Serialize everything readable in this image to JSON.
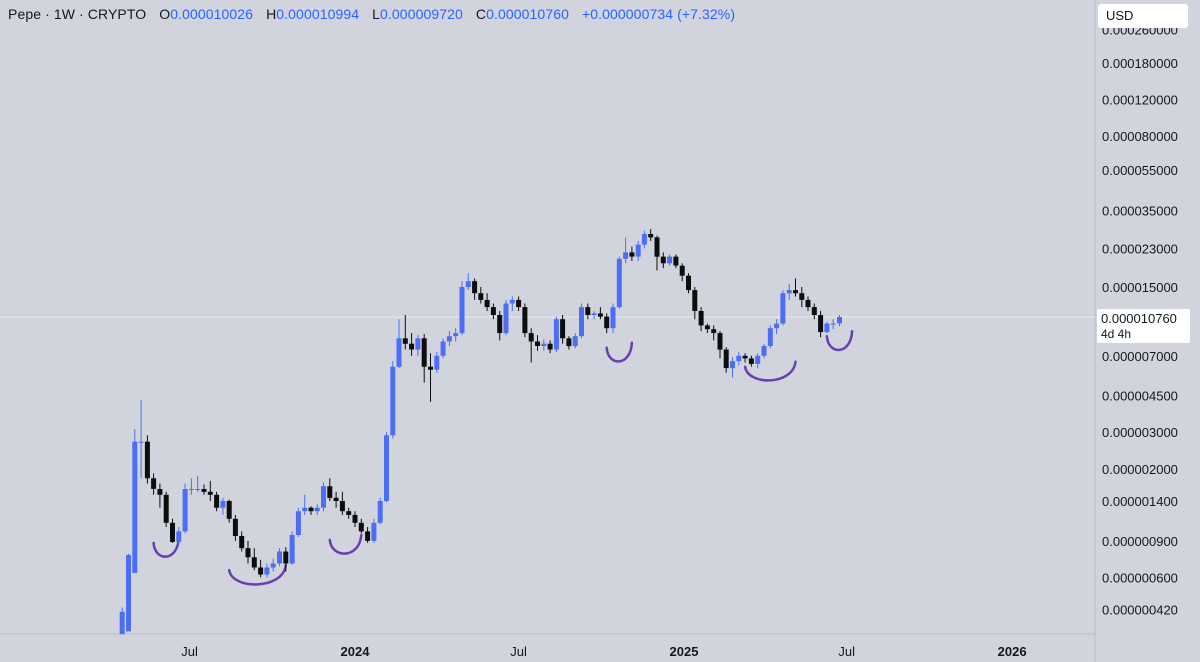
{
  "header": {
    "symbol": "Pepe · 1W · CRYPTO",
    "o_label": "O",
    "o_value": "0.000010026",
    "h_label": "H",
    "h_value": "0.000010994",
    "l_label": "L",
    "l_value": "0.000009720",
    "c_label": "C",
    "c_value": "0.000010760",
    "change": "+0.000000734 (+7.32%)"
  },
  "currency_button": "USD",
  "last_price_tag": {
    "price": "0.000010760",
    "countdown": "4d 4h"
  },
  "colors": {
    "background": "#d1d4dc",
    "up": "#4c6ef5",
    "down": "#0d0d0d",
    "annotation": "#6a3fb0",
    "value": "#2962ff"
  },
  "chart_data": {
    "type": "candlestick",
    "scale": "log",
    "y_tick_labels": [
      "0.000260000",
      "0.000180000",
      "0.000120000",
      "0.000080000",
      "0.000055000",
      "0.000035000",
      "0.000023000",
      "0.000015000",
      "0.000007000",
      "0.000004500",
      "0.000003000",
      "0.000002000",
      "0.000001400",
      "0.000000900",
      "0.000000600",
      "0.000000420"
    ],
    "y_tick_values": [
      0.00026,
      0.00018,
      0.00012,
      8e-05,
      5.5e-05,
      3.5e-05,
      2.3e-05,
      1.5e-05,
      7e-06,
      4.5e-06,
      3e-06,
      2e-06,
      1.4e-06,
      9e-07,
      6e-07,
      4.2e-07
    ],
    "x_tick_labels": [
      "Jul",
      "2024",
      "Jul",
      "2025",
      "Jul",
      "2026"
    ],
    "x_tick_dates": [
      "2023-07-01",
      "2024-01-01",
      "2024-07-01",
      "2025-01-01",
      "2025-07-01",
      "2026-01-01"
    ],
    "x_range": [
      "2023-04-10",
      "2026-03-30"
    ],
    "last_price": 1.076e-05,
    "candle_dates": [
      "2023-04-17",
      "2023-04-24",
      "2023-05-01",
      "2023-05-08",
      "2023-05-15",
      "2023-05-22",
      "2023-05-29",
      "2023-06-05",
      "2023-06-12",
      "2023-06-19",
      "2023-06-26",
      "2023-07-03",
      "2023-07-10",
      "2023-07-17",
      "2023-07-24",
      "2023-07-31",
      "2023-08-07",
      "2023-08-14",
      "2023-08-21",
      "2023-08-28",
      "2023-09-04",
      "2023-09-11",
      "2023-09-18",
      "2023-09-25",
      "2023-10-02",
      "2023-10-09",
      "2023-10-16",
      "2023-10-23",
      "2023-10-30",
      "2023-11-06",
      "2023-11-13",
      "2023-11-20",
      "2023-11-27",
      "2023-12-04",
      "2023-12-11",
      "2023-12-18",
      "2023-12-25",
      "2024-01-01",
      "2024-01-08",
      "2024-01-15",
      "2024-01-22",
      "2024-01-29",
      "2024-02-05",
      "2024-02-12",
      "2024-02-19",
      "2024-02-26",
      "2024-03-04",
      "2024-03-11",
      "2024-03-18",
      "2024-03-25",
      "2024-04-01",
      "2024-04-08",
      "2024-04-15",
      "2024-04-22",
      "2024-04-29",
      "2024-05-06",
      "2024-05-13",
      "2024-05-20",
      "2024-05-27",
      "2024-06-03",
      "2024-06-10",
      "2024-06-17",
      "2024-06-24",
      "2024-07-01",
      "2024-07-08",
      "2024-07-15",
      "2024-07-22",
      "2024-07-29",
      "2024-08-05",
      "2024-08-12",
      "2024-08-19",
      "2024-08-26",
      "2024-09-02",
      "2024-09-09",
      "2024-09-16",
      "2024-09-23",
      "2024-09-30",
      "2024-10-07",
      "2024-10-14",
      "2024-10-21",
      "2024-10-28",
      "2024-11-04",
      "2024-11-11",
      "2024-11-18",
      "2024-11-25",
      "2024-12-02",
      "2024-12-09",
      "2024-12-16",
      "2024-12-23",
      "2024-12-30",
      "2025-01-06",
      "2025-01-13",
      "2025-01-20",
      "2025-01-27",
      "2025-02-03",
      "2025-02-10",
      "2025-02-17",
      "2025-02-24",
      "2025-03-03",
      "2025-03-10",
      "2025-03-17",
      "2025-03-24",
      "2025-03-31",
      "2025-04-07",
      "2025-04-14",
      "2025-04-21",
      "2025-04-28",
      "2025-05-05",
      "2025-05-12",
      "2025-05-19",
      "2025-05-26",
      "2025-06-02",
      "2025-06-09",
      "2025-06-16",
      "2025-06-23",
      "2025-06-30"
    ],
    "candles": [
      [
        3.2e-07,
        4.3e-07,
        3.9e-07,
        4.1e-07
      ],
      [
        3.3e-07,
        7.8e-07,
        4.2e-07,
        7.7e-07
      ],
      [
        6.3e-07,
        3.1e-06,
        6.7e-07,
        2.7e-06
      ],
      [
        2.7e-06,
        4.3e-06,
        1.8e-06,
        2.7e-06
      ],
      [
        2.7e-06,
        2.9e-06,
        1.7e-06,
        1.8e-06
      ],
      [
        1.8e-06,
        1.9e-06,
        1.5e-06,
        1.6e-06
      ],
      [
        1.6e-06,
        1.7e-06,
        1.3e-06,
        1.5e-06
      ],
      [
        1.5e-06,
        1.55e-06,
        1.05e-06,
        1.1e-06
      ],
      [
        1.1e-06,
        1.15e-06,
        8.8e-07,
        8.9e-07
      ],
      [
        8.9e-07,
        1.05e-06,
        8.6e-07,
        1e-06
      ],
      [
        1e-06,
        1.7e-06,
        9.8e-07,
        1.6e-06
      ],
      [
        1.6e-06,
        1.8e-06,
        1.5e-06,
        1.6e-06
      ],
      [
        1.6e-06,
        1.85e-06,
        1.55e-06,
        1.6e-06
      ],
      [
        1.6e-06,
        1.68e-06,
        1.5e-06,
        1.55e-06
      ],
      [
        1.55e-06,
        1.75e-06,
        1.4e-06,
        1.5e-06
      ],
      [
        1.5e-06,
        1.55e-06,
        1.25e-06,
        1.3e-06
      ],
      [
        1.3e-06,
        1.45e-06,
        1.2e-06,
        1.4e-06
      ],
      [
        1.4e-06,
        1.42e-06,
        1.1e-06,
        1.15e-06
      ],
      [
        1.15e-06,
        1.2e-06,
        9e-07,
        9.5e-07
      ],
      [
        9.5e-07,
        1e-06,
        8e-07,
        8.3e-07
      ],
      [
        8.3e-07,
        9e-07,
        7e-07,
        7.5e-07
      ],
      [
        7.5e-07,
        8.3e-07,
        6.5e-07,
        6.7e-07
      ],
      [
        6.7e-07,
        7.3e-07,
        6e-07,
        6.2e-07
      ],
      [
        6.2e-07,
        7e-07,
        6e-07,
        6.7e-07
      ],
      [
        6.7e-07,
        7.4e-07,
        6.4e-07,
        7e-07
      ],
      [
        7e-07,
        8.3e-07,
        6.8e-07,
        8e-07
      ],
      [
        8e-07,
        8.4e-07,
        6.4e-07,
        7e-07
      ],
      [
        7e-07,
        1e-06,
        6.9e-07,
        9.6e-07
      ],
      [
        9.6e-07,
        1.3e-06,
        9.4e-07,
        1.25e-06
      ],
      [
        1.25e-06,
        1.5e-06,
        1.2e-06,
        1.3e-06
      ],
      [
        1.3e-06,
        1.32e-06,
        1.2e-06,
        1.25e-06
      ],
      [
        1.25e-06,
        1.35e-06,
        1.2e-06,
        1.3e-06
      ],
      [
        1.3e-06,
        1.72e-06,
        1.25e-06,
        1.65e-06
      ],
      [
        1.65e-06,
        1.8e-06,
        1.4e-06,
        1.45e-06
      ],
      [
        1.45e-06,
        1.55e-06,
        1.3e-06,
        1.4e-06
      ],
      [
        1.4e-06,
        1.55e-06,
        1.2e-06,
        1.25e-06
      ],
      [
        1.25e-06,
        1.3e-06,
        1.15e-06,
        1.2e-06
      ],
      [
        1.2e-06,
        1.25e-06,
        1.05e-06,
        1.1e-06
      ],
      [
        1.1e-06,
        1.15e-06,
        9.8e-07,
        1e-06
      ],
      [
        1e-06,
        1.05e-06,
        8.8e-07,
        9e-07
      ],
      [
        9e-07,
        1.15e-06,
        8.8e-07,
        1.1e-06
      ],
      [
        1.1e-06,
        1.45e-06,
        1.08e-06,
        1.4e-06
      ],
      [
        1.4e-06,
        3e-06,
        1.38e-06,
        2.9e-06
      ],
      [
        2.9e-06,
        6.6e-06,
        2.8e-06,
        6.2e-06
      ],
      [
        6.2e-06,
        1.05e-05,
        6.1e-06,
        8.5e-06
      ],
      [
        8.5e-06,
        1.1e-05,
        7.5e-06,
        8e-06
      ],
      [
        8e-06,
        9e-06,
        7e-06,
        7.5e-06
      ],
      [
        7.5e-06,
        8.8e-06,
        7e-06,
        8.5e-06
      ],
      [
        8.5e-06,
        8.9e-06,
        5.2e-06,
        6.2e-06
      ],
      [
        6.2e-06,
        7.2e-06,
        4.2e-06,
        6e-06
      ],
      [
        6e-06,
        7.3e-06,
        5.8e-06,
        7e-06
      ],
      [
        7e-06,
        8.5e-06,
        6.8e-06,
        8.2e-06
      ],
      [
        8.2e-06,
        9.2e-06,
        7.8e-06,
        8.7e-06
      ],
      [
        8.7e-06,
        9.5e-06,
        8.2e-06,
        9e-06
      ],
      [
        9e-06,
        1.6e-05,
        8.8e-06,
        1.5e-05
      ],
      [
        1.5e-05,
        1.75e-05,
        1.45e-05,
        1.6e-05
      ],
      [
        1.6e-05,
        1.65e-05,
        1.3e-05,
        1.4e-05
      ],
      [
        1.4e-05,
        1.5e-05,
        1.25e-05,
        1.3e-05
      ],
      [
        1.3e-05,
        1.4e-05,
        1.15e-05,
        1.2e-05
      ],
      [
        1.2e-05,
        1.25e-05,
        1.05e-05,
        1.1e-05
      ],
      [
        1.1e-05,
        1.15e-05,
        8.3e-06,
        9e-06
      ],
      [
        9e-06,
        1.3e-05,
        8.8e-06,
        1.25e-05
      ],
      [
        1.25e-05,
        1.35e-05,
        1.15e-05,
        1.3e-05
      ],
      [
        1.3e-05,
        1.35e-05,
        1.15e-05,
        1.2e-05
      ],
      [
        1.2e-05,
        1.25e-05,
        8.6e-06,
        9e-06
      ],
      [
        9e-06,
        9.5e-06,
        6.5e-06,
        8.2e-06
      ],
      [
        8.2e-06,
        8.8e-06,
        7.4e-06,
        7.8e-06
      ],
      [
        7.8e-06,
        8.4e-06,
        7.4e-06,
        8e-06
      ],
      [
        8e-06,
        8.3e-06,
        7.2e-06,
        7.5e-06
      ],
      [
        7.5e-06,
        1.08e-05,
        7.3e-06,
        1.05e-05
      ],
      [
        1.05e-05,
        1.1e-05,
        8e-06,
        8.5e-06
      ],
      [
        8.5e-06,
        8.7e-06,
        7.5e-06,
        7.8e-06
      ],
      [
        7.8e-06,
        9e-06,
        7.6e-06,
        8.7e-06
      ],
      [
        8.7e-06,
        1.25e-05,
        8.5e-06,
        1.2e-05
      ],
      [
        1.2e-05,
        1.25e-05,
        1.05e-05,
        1.1e-05
      ],
      [
        1.1e-05,
        1.15e-05,
        1.05e-05,
        1.12e-05
      ],
      [
        1.12e-05,
        1.2e-05,
        1.05e-05,
        1.08e-05
      ],
      [
        1.08e-05,
        1.12e-05,
        9e-06,
        9.5e-06
      ],
      [
        9.5e-06,
        1.25e-05,
        9e-06,
        1.2e-05
      ],
      [
        1.2e-05,
        2.1e-05,
        1.18e-05,
        2.05e-05
      ],
      [
        2.05e-05,
        2.6e-05,
        1.95e-05,
        2.2e-05
      ],
      [
        2.2e-05,
        2.35e-05,
        2e-05,
        2.1e-05
      ],
      [
        2.1e-05,
        2.5e-05,
        2e-05,
        2.4e-05
      ],
      [
        2.4e-05,
        2.8e-05,
        2.3e-05,
        2.7e-05
      ],
      [
        2.7e-05,
        2.85e-05,
        2.5e-05,
        2.6e-05
      ],
      [
        2.6e-05,
        2.65e-05,
        1.8e-05,
        2.1e-05
      ],
      [
        2.1e-05,
        2.2e-05,
        1.85e-05,
        1.95e-05
      ],
      [
        1.95e-05,
        2.15e-05,
        1.9e-05,
        2.1e-05
      ],
      [
        2.1e-05,
        2.15e-05,
        1.85e-05,
        1.9e-05
      ],
      [
        1.9e-05,
        1.95e-05,
        1.6e-05,
        1.7e-05
      ],
      [
        1.7e-05,
        1.75e-05,
        1.4e-05,
        1.45e-05
      ],
      [
        1.45e-05,
        1.5e-05,
        1.05e-05,
        1.15e-05
      ],
      [
        1.15e-05,
        1.2e-05,
        9.2e-06,
        9.8e-06
      ],
      [
        9.8e-06,
        1e-05,
        9e-06,
        9.4e-06
      ],
      [
        9.4e-06,
        9.8e-06,
        8.3e-06,
        9e-06
      ],
      [
        9e-06,
        9.2e-06,
        6.8e-06,
        7.5e-06
      ],
      [
        7.5e-06,
        7.7e-06,
        5.8e-06,
        6.1e-06
      ],
      [
        6.1e-06,
        6.9e-06,
        5.5e-06,
        6.6e-06
      ],
      [
        6.6e-06,
        7.3e-06,
        6.3e-06,
        7e-06
      ],
      [
        7e-06,
        7.2e-06,
        6.5e-06,
        6.8e-06
      ],
      [
        6.8e-06,
        7e-06,
        6.2e-06,
        6.4e-06
      ],
      [
        6.4e-06,
        7.2e-06,
        6.1e-06,
        7e-06
      ],
      [
        7e-06,
        8e-06,
        6.8e-06,
        7.8e-06
      ],
      [
        7.8e-06,
        9.8e-06,
        7.6e-06,
        9.5e-06
      ],
      [
        9.5e-06,
        1.05e-05,
        8.9e-06,
        1e-05
      ],
      [
        1e-05,
        1.45e-05,
        9.8e-06,
        1.4e-05
      ],
      [
        1.4e-05,
        1.55e-05,
        1.3e-05,
        1.45e-05
      ],
      [
        1.45e-05,
        1.65e-05,
        1.35e-05,
        1.4e-05
      ],
      [
        1.4e-05,
        1.5e-05,
        1.2e-05,
        1.3e-05
      ],
      [
        1.3e-05,
        1.35e-05,
        1.15e-05,
        1.2e-05
      ],
      [
        1.2e-05,
        1.25e-05,
        1.05e-05,
        1.1e-05
      ],
      [
        1.1e-05,
        1.15e-05,
        8.6e-06,
        9.1e-06
      ],
      [
        9.1e-06,
        1.02e-05,
        9e-06,
        1e-05
      ],
      [
        1e-05,
        1.05e-05,
        9.4e-06,
        1e-05
      ],
      [
        1.0026e-05,
        1.0994e-05,
        9.72e-06,
        1.076e-05
      ]
    ],
    "annotations": [
      {
        "type": "arc",
        "from": "2023-05-22",
        "to": "2023-06-19",
        "level": 8.5e-07
      },
      {
        "type": "arc",
        "from": "2023-08-14",
        "to": "2023-10-16",
        "level": 6.3e-07
      },
      {
        "type": "arc",
        "from": "2023-12-04",
        "to": "2024-01-08",
        "level": 8.8e-07
      },
      {
        "type": "arc",
        "from": "2024-10-07",
        "to": "2024-11-04",
        "level": 7.4e-06
      },
      {
        "type": "arc",
        "from": "2025-03-10",
        "to": "2025-05-05",
        "level": 6e-06
      },
      {
        "type": "arc",
        "from": "2025-06-09",
        "to": "2025-07-07",
        "level": 8.4e-06
      }
    ]
  }
}
